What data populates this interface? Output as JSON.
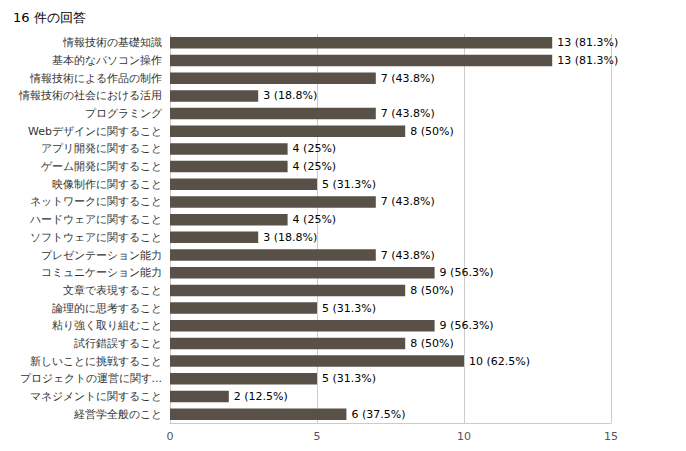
{
  "chart_data": {
    "type": "bar",
    "orientation": "horizontal",
    "title": "16 件の回答",
    "categories": [
      "経営学全般のこと",
      "マネジメントに関すること",
      "プロジェクトの運営に関す...",
      "新しいことに挑戦すること",
      "試行錯誤すること",
      "粘り強く取り組むこと",
      "論理的に思考すること",
      "文章で表現すること",
      "コミュニケーション能力",
      "プレゼンテーション能力",
      "ソフトウェアに関すること",
      "ハードウェアに関すること",
      "ネットワークに関すること",
      "映像制作に関すること",
      "ゲーム開発に関すること",
      "アプリ開発に関すること",
      "Webデザインに関すること",
      "プログラミング",
      "情報技術の社会における活用",
      "情報技術による作品の制作",
      "基本的なパソコン操作",
      "情報技術の基礎知識"
    ],
    "values": [
      6,
      2,
      5,
      10,
      8,
      9,
      5,
      8,
      9,
      7,
      3,
      4,
      7,
      5,
      4,
      4,
      8,
      7,
      3,
      7,
      13,
      13
    ],
    "value_labels": [
      "6 (37.5%)",
      "2 (12.5%)",
      "5 (31.3%)",
      "10 (62.5%)",
      "8 (50%)",
      "9 (56.3%)",
      "5 (31.3%)",
      "8 (50%)",
      "9 (56.3%)",
      "7 (43.8%)",
      "3 (18.8%)",
      "4 (25%)",
      "7 (43.8%)",
      "5 (31.3%)",
      "4 (25%)",
      "4 (25%)",
      "8 (50%)",
      "7 (43.8%)",
      "3 (18.8%)",
      "7 (43.8%)",
      "13 (81.3%)",
      "13 (81.3%)"
    ],
    "data_labels": true,
    "color": "#595148",
    "xlim": [
      0,
      15
    ],
    "xticks": [
      0,
      5,
      10,
      15
    ],
    "grid": true
  }
}
